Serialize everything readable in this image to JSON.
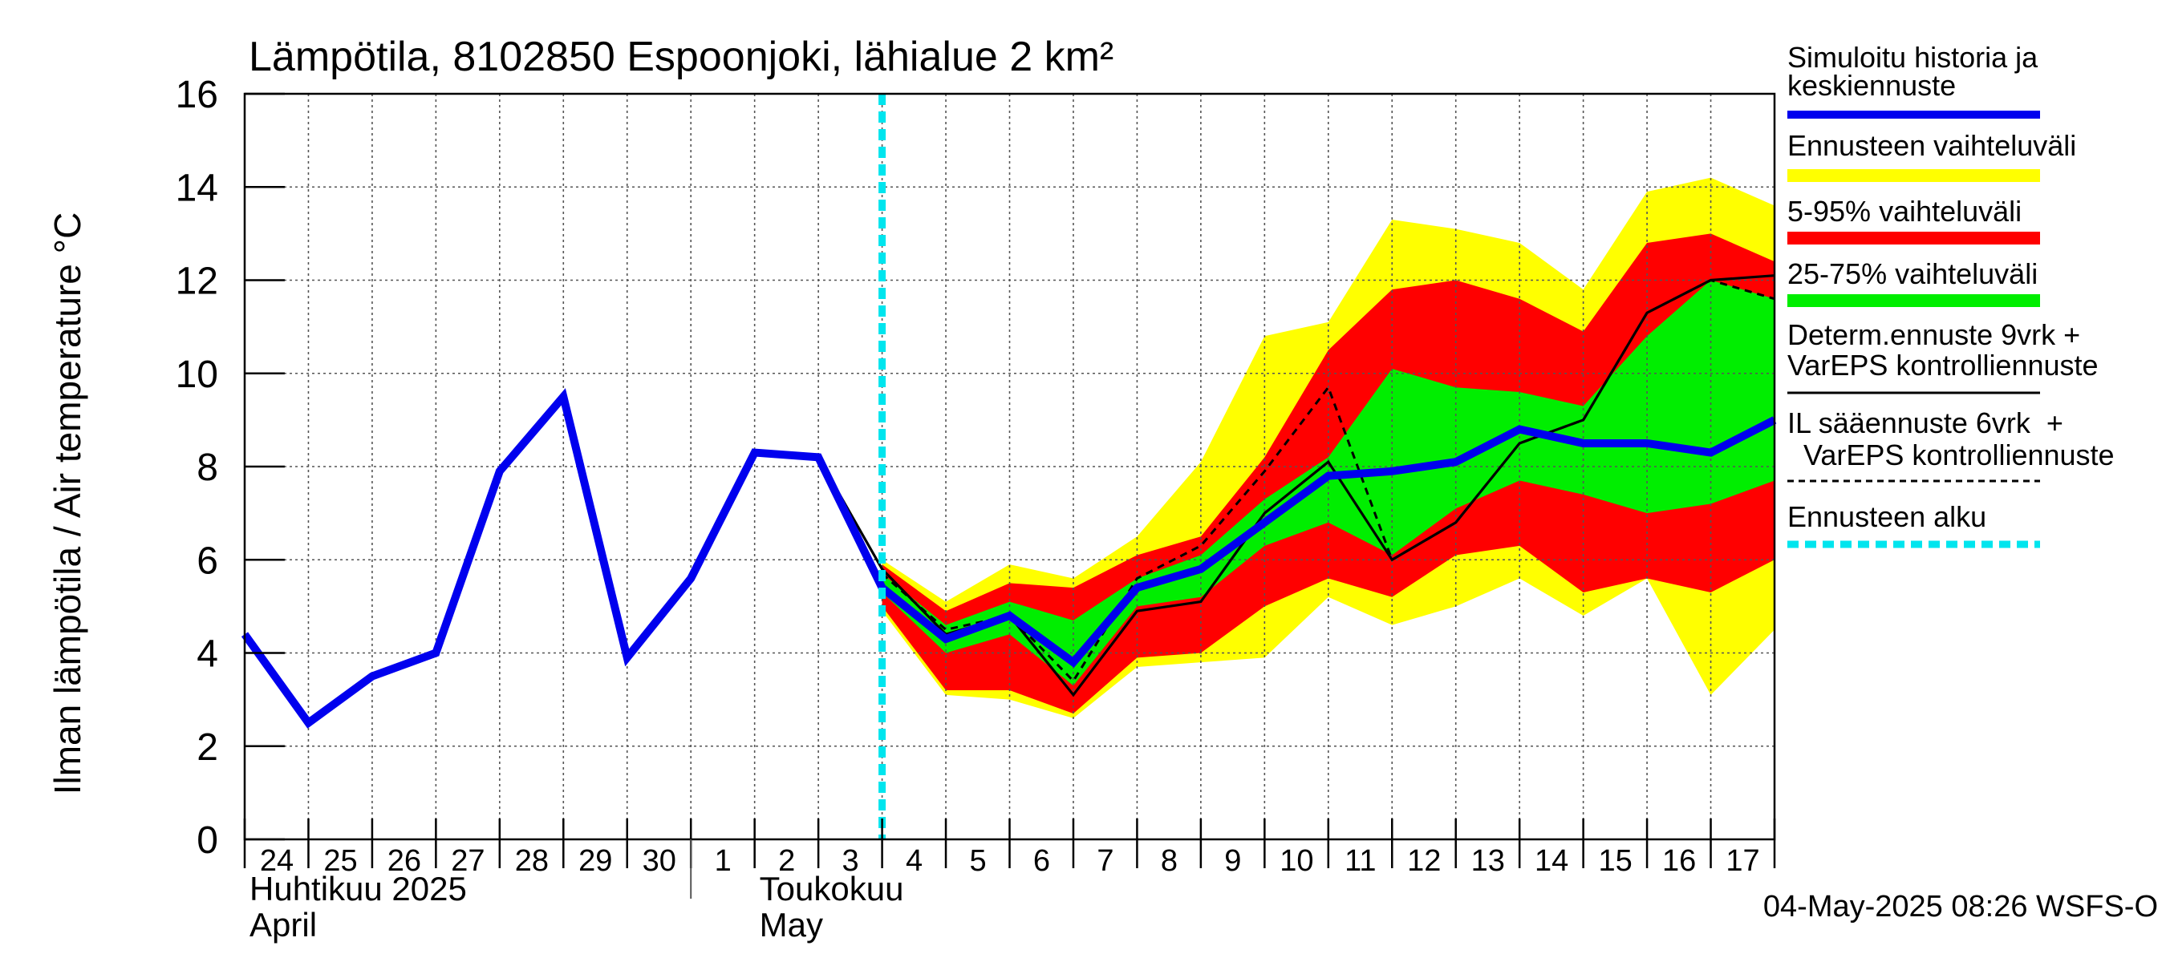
{
  "chart_data": {
    "type": "line",
    "title": "Lämpötila, 8102850 Espoonjoki, lähialue 2 km²",
    "ylabel": "Ilman lämpötila / Air temperature    °C",
    "ylim": [
      0,
      16
    ],
    "yticks": [
      0,
      2,
      4,
      6,
      8,
      10,
      12,
      14,
      16
    ],
    "xlim": [
      0,
      24
    ],
    "grid": true,
    "legend_position": "right",
    "day_labels": [
      "24",
      "25",
      "26",
      "27",
      "28",
      "29",
      "30",
      "1",
      "2",
      "3",
      "4",
      "5",
      "6",
      "7",
      "8",
      "9",
      "10",
      "11",
      "12",
      "13",
      "14",
      "15",
      "16",
      "17"
    ],
    "month_labels": [
      {
        "fi": "Huhtikuu  2025",
        "en": "April",
        "at": 0
      },
      {
        "fi": "Toukokuu",
        "en": "May",
        "at": 8
      }
    ],
    "month_divider_at": 7,
    "forecast_start": 10,
    "timestamp": "04-May-2025 08:26 WSFS-O",
    "colors": {
      "history": "#0000ee",
      "ensemble_range": "#ffff00",
      "p5_95": "#ff0000",
      "p25_75": "#00ee00",
      "deterministic": "#000000",
      "forecast_start": "#00e5ee"
    },
    "legend": [
      {
        "label": "Simuloitu historia ja keskiennuste",
        "style": "history"
      },
      {
        "label": "Ennusteen vaihteluväli",
        "style": "ensemble_range"
      },
      {
        "label": "5-95% vaihteluväli",
        "style": "p5_95"
      },
      {
        "label": "25-75% vaihteluväli",
        "style": "p25_75"
      },
      {
        "label": "Determ.ennuste 9vrk + VarEPS kontrolliennuste",
        "style": "deterministic"
      },
      {
        "label": "IL sääennuste 6vrk  + VarEPS kontrolliennuste",
        "style": "il_forecast"
      },
      {
        "label": "Ennusteen alku",
        "style": "forecast_start"
      }
    ],
    "band_x": [
      10,
      11,
      12,
      13,
      14,
      15,
      16,
      17,
      18,
      19,
      20,
      21,
      22,
      23,
      24
    ],
    "ensemble_range": {
      "min": [
        4.9,
        3.1,
        3.0,
        2.6,
        3.7,
        3.8,
        3.9,
        5.2,
        4.6,
        5.0,
        5.6,
        4.8,
        5.6,
        3.1,
        4.5
      ],
      "max": [
        6.0,
        5.1,
        5.9,
        5.6,
        6.5,
        8.1,
        10.8,
        11.1,
        13.3,
        13.1,
        12.8,
        11.8,
        13.9,
        14.2,
        13.6
      ]
    },
    "p5_95": {
      "low": [
        5.0,
        3.2,
        3.2,
        2.7,
        3.9,
        4.0,
        5.0,
        5.6,
        5.2,
        6.1,
        6.3,
        5.3,
        5.6,
        5.3,
        6.0
      ],
      "high": [
        5.9,
        4.9,
        5.5,
        5.4,
        6.1,
        6.5,
        8.2,
        10.5,
        11.8,
        12.0,
        11.6,
        10.9,
        12.8,
        13.0,
        12.4
      ]
    },
    "p25_75": {
      "low": [
        5.3,
        4.0,
        4.4,
        3.3,
        5.0,
        5.2,
        6.3,
        6.8,
        6.1,
        7.1,
        7.7,
        7.4,
        7.0,
        7.2,
        7.7
      ],
      "high": [
        5.7,
        4.6,
        5.1,
        4.7,
        5.6,
        6.1,
        7.3,
        8.2,
        10.1,
        9.7,
        9.6,
        9.3,
        10.8,
        12.0,
        11.6
      ]
    },
    "series": [
      {
        "name": "Simuloitu historia ja keskiennuste",
        "x": [
          0,
          1,
          2,
          3,
          4,
          5,
          6,
          7,
          8,
          9,
          10,
          11,
          12,
          13,
          14,
          15,
          16,
          17,
          18,
          19,
          20,
          21,
          22,
          23,
          24
        ],
        "values": [
          4.4,
          2.5,
          3.5,
          4.0,
          7.9,
          9.5,
          3.9,
          5.6,
          8.3,
          8.2,
          5.4,
          4.3,
          4.8,
          3.8,
          5.4,
          5.8,
          6.8,
          7.8,
          7.9,
          8.1,
          8.8,
          8.5,
          8.5,
          8.3,
          9.0
        ]
      },
      {
        "name": "Determ.ennuste 9vrk + VarEPS kontrolliennuste",
        "x": [
          8,
          9,
          10,
          11,
          12,
          13,
          14,
          15,
          16,
          17,
          18,
          19,
          20,
          21,
          22,
          23,
          24
        ],
        "values": [
          8.3,
          8.2,
          5.8,
          4.4,
          4.8,
          3.1,
          4.9,
          5.1,
          7.0,
          8.1,
          6.0,
          6.8,
          8.5,
          9.0,
          11.3,
          12.0,
          12.1
        ]
      },
      {
        "name": "IL sääennuste 6vrk  + VarEPS kontrolliennuste",
        "x": [
          10,
          11,
          12,
          13,
          14,
          15,
          16,
          17,
          18,
          19,
          20,
          21,
          22,
          23,
          24
        ],
        "values": [
          5.7,
          4.5,
          4.8,
          3.4,
          5.6,
          6.3,
          7.9,
          9.7,
          6.0,
          6.8,
          8.5,
          9.0,
          11.3,
          12.0,
          11.6
        ]
      }
    ]
  }
}
